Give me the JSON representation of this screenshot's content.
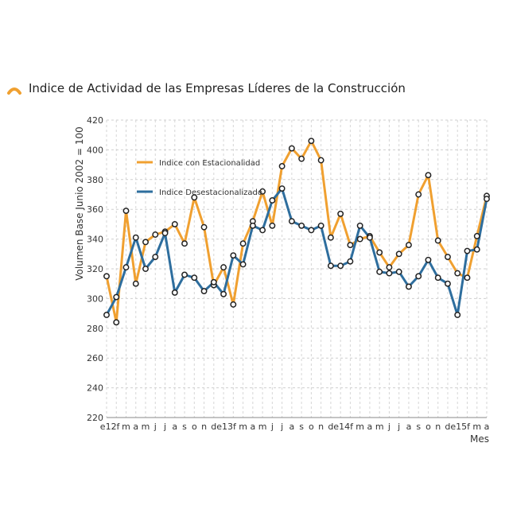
{
  "header": {
    "title": "Indice de Actividad de las Empresas Líderes de la Construcción",
    "icon": "orange-arc-icon",
    "icon_color": "#F0A030"
  },
  "chart_data": {
    "type": "line",
    "title": "Indice de Actividad de las Empresas Líderes de la Construcción",
    "ylabel": "Volumen Base Junio 2002 = 100",
    "xlabel": "Mes",
    "ylim": [
      220,
      420
    ],
    "yticks": [
      220,
      240,
      260,
      280,
      300,
      320,
      340,
      360,
      380,
      400,
      420
    ],
    "grid": true,
    "legend_position": "top-left",
    "categories": [
      "e12",
      "f",
      "m",
      "a",
      "m",
      "j",
      "j",
      "a",
      "s",
      "o",
      "n",
      "d",
      "e13",
      "f",
      "m",
      "a",
      "m",
      "j",
      "j",
      "a",
      "s",
      "o",
      "n",
      "d",
      "e14",
      "f",
      "m",
      "a",
      "m",
      "j",
      "j",
      "a",
      "s",
      "o",
      "n",
      "d",
      "e15",
      "f",
      "m",
      "a"
    ],
    "x_tick_labels": [
      "e12f",
      "m",
      "a",
      "m",
      "j",
      "j",
      "a",
      "s",
      "o",
      "n",
      "de13f",
      "m",
      "a",
      "m",
      "j",
      "j",
      "a",
      "s",
      "o",
      "n",
      "de14f",
      "m",
      "a",
      "m",
      "j",
      "j",
      "a",
      "s",
      "o",
      "n",
      "de15f",
      "m",
      "a"
    ],
    "series": [
      {
        "name": "Indice con Estacionalidad",
        "color": "#F0A030",
        "values": [
          315,
          284,
          359,
          310,
          338,
          343,
          345,
          350,
          337,
          368,
          348,
          309,
          321,
          296,
          337,
          352,
          372,
          349,
          389,
          401,
          394,
          406,
          393,
          341,
          357,
          336,
          340,
          342,
          331,
          321,
          330,
          336,
          370,
          383,
          339,
          328,
          317,
          314,
          342,
          369
        ]
      },
      {
        "name": "Indice Desestacionalizado",
        "color": "#2E6E9E",
        "values": [
          289,
          301,
          321,
          341,
          320,
          328,
          344,
          304,
          316,
          314,
          305,
          311,
          303,
          329,
          323,
          349,
          346,
          366,
          374,
          352,
          349,
          346,
          349,
          322,
          322,
          325,
          349,
          341,
          318,
          317,
          318,
          308,
          315,
          326,
          314,
          310,
          289,
          332,
          333,
          367
        ]
      }
    ]
  }
}
